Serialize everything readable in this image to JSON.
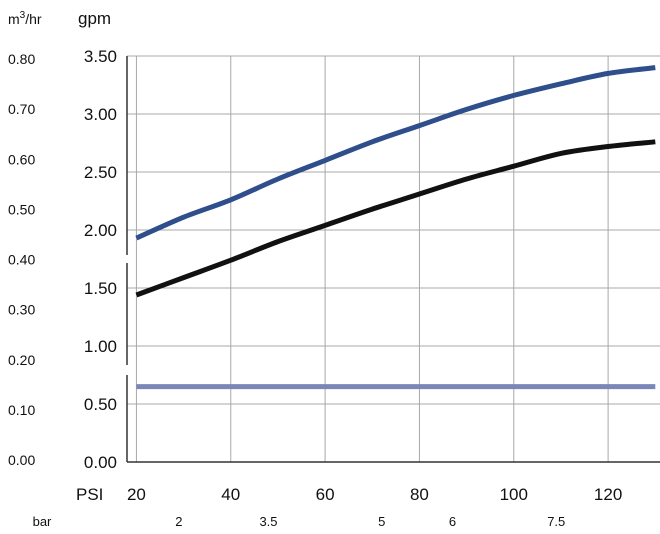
{
  "chart_data": {
    "type": "line",
    "title": "",
    "x": [
      20,
      30,
      40,
      50,
      60,
      70,
      80,
      90,
      100,
      110,
      120,
      130
    ],
    "xlim": [
      18,
      131
    ],
    "ylim": [
      0,
      3.5
    ],
    "grid": true,
    "legend": "none",
    "axis_labels": {
      "secondary_y_unit_base": "m",
      "secondary_y_unit_sup": "3",
      "secondary_y_unit_rest": "/hr",
      "primary_y_unit": "gpm",
      "x_primary_unit": "PSI",
      "x_secondary_unit": "bar"
    },
    "primary_y_ticks": [
      "0.00",
      "0.50",
      "1.00",
      "1.50",
      "2.00",
      "2.50",
      "3.00",
      "3.50"
    ],
    "primary_y_tick_values": [
      0,
      0.5,
      1.0,
      1.5,
      2.0,
      2.5,
      3.0,
      3.5
    ],
    "secondary_y_ticks": [
      "0.00",
      "0.10",
      "0.20",
      "0.30",
      "0.40",
      "0.50",
      "0.60",
      "0.70",
      "0.80"
    ],
    "x_ticks": [
      "20",
      "40",
      "60",
      "80",
      "100",
      "120"
    ],
    "x_tick_values": [
      20,
      40,
      60,
      80,
      100,
      120
    ],
    "x_secondary_ticks": [
      "2",
      "3.5",
      "5",
      "6",
      "7.5"
    ],
    "x_secondary_tick_values": [
      29,
      48,
      72,
      87,
      109
    ],
    "series": [
      {
        "color": "#2e4e8c",
        "values": [
          1.93,
          2.11,
          2.26,
          2.44,
          2.6,
          2.76,
          2.9,
          3.04,
          3.16,
          3.26,
          3.35,
          3.4
        ]
      },
      {
        "color": "#111111",
        "values": [
          1.44,
          1.59,
          1.74,
          1.9,
          2.04,
          2.18,
          2.31,
          2.44,
          2.55,
          2.66,
          2.72,
          2.76
        ]
      },
      {
        "color": "#7a87b8",
        "values": [
          0.65,
          0.65,
          0.65,
          0.65,
          0.65,
          0.65,
          0.65,
          0.65,
          0.65,
          0.65,
          0.65,
          0.65
        ]
      }
    ]
  }
}
